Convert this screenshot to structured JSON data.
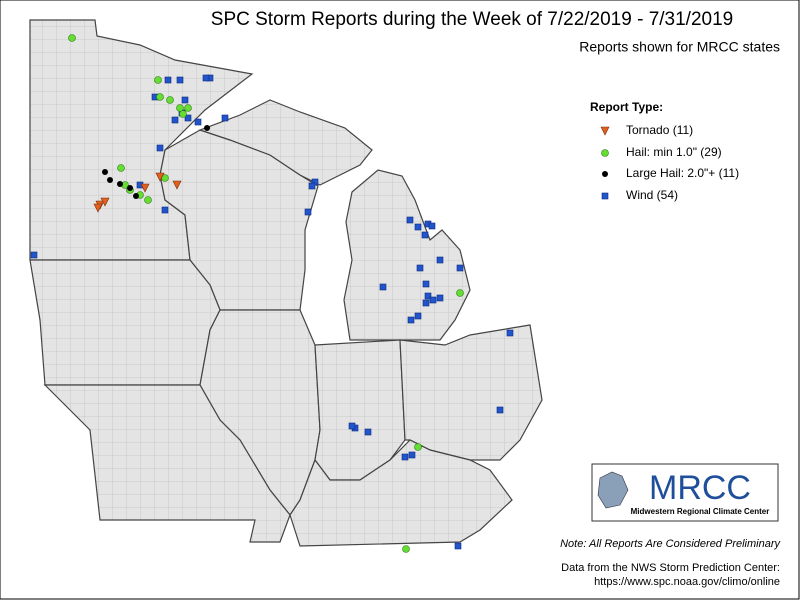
{
  "title": "SPC Storm Reports during the Week of 7/22/2019 - 7/31/2019",
  "subtitle": "Reports shown for MRCC states",
  "legend": {
    "title": "Report Type:",
    "items": [
      "Tornado (11)",
      "Hail: min 1.0\" (29)",
      "Large Hail: 2.0\"+ (11)",
      "Wind (54)"
    ]
  },
  "logo": {
    "name": "MRCC",
    "caption": "Midwestern Regional Climate Center"
  },
  "note": "Note: All Reports Are Considered Preliminary",
  "source": [
    "Data from the NWS Storm Prediction Center:",
    "https://www.spc.noaa.gov/climo/online"
  ]
}
